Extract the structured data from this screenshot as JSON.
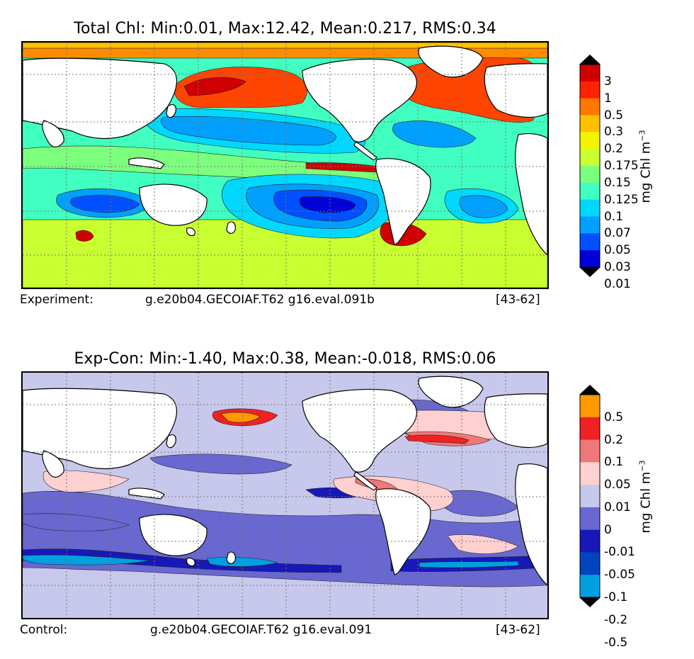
{
  "panels": [
    {
      "title": "Total Chl: Min:0.01, Max:12.42, Mean:0.217, RMS:0.34",
      "caption_left": "Experiment:",
      "caption_mid": "g.e20b04.GECOIAF.T62 g16.eval.091b",
      "caption_right": "[43-62]",
      "colorbar": {
        "labels": [
          "3",
          "1",
          "0.5",
          "0.3",
          "0.2",
          "0.175",
          "0.15",
          "0.125",
          "0.1",
          "0.07",
          "0.05",
          "0.03",
          "0.01"
        ],
        "colors": [
          "#7f0000",
          "#d00000",
          "#ff2200",
          "#ff7700",
          "#ffc000",
          "#f4f400",
          "#c8ff30",
          "#7cff7c",
          "#40ffc0",
          "#00d8ff",
          "#00a0ff",
          "#0050ff",
          "#0000d8",
          "#00007f"
        ],
        "unit_main": "mg Chl m",
        "unit_exp": "−3"
      },
      "palette": {
        "land": "#ffffff",
        "polar": "#ff8c00",
        "polar_edge": "#ffc000",
        "subpolar": "#ff4400",
        "hotspot": "#d00000",
        "coastal": "#ffc000",
        "midlat": "#7cff7c",
        "tropical": "#40ffc0",
        "gyre_outer": "#00d8ff",
        "gyre_mid": "#00a0ff",
        "gyre_inner": "#0050ff",
        "gyre_core": "#0000d8",
        "southern": "#c8ff30"
      }
    },
    {
      "title": "Exp-Con: Min:-1.40, Max:0.38, Mean:-0.018, RMS:0.06",
      "caption_left": "Control:",
      "caption_mid": "g.e20b04.GECOIAF.T62 g16.eval.091",
      "caption_right": "[43-62]",
      "colorbar": {
        "labels": [
          "0.5",
          "0.2",
          "0.1",
          "0.05",
          "0.01",
          "0",
          "-0.01",
          "-0.05",
          "-0.1",
          "-0.2",
          "-0.5"
        ],
        "colors": [
          "#ffff00",
          "#ff9900",
          "#ee2222",
          "#f07878",
          "#ffd0d0",
          "#c8c8ec",
          "#6868d0",
          "#1818b8",
          "#0044c0",
          "#00a0e0",
          "#00ffff"
        ],
        "unit_main": "mg Chl m",
        "unit_exp": "−3"
      },
      "palette": {
        "base": "#c8c8ec",
        "negative": "#6868d0",
        "strong_neg": "#1818b8",
        "positive": "#ffd0d0",
        "pos_mid": "#f07878",
        "pos_high": "#ee2222",
        "pos_max": "#ff9900",
        "cyan_band": "#00a0e0",
        "cyan_light": "#00ffff"
      }
    }
  ]
}
